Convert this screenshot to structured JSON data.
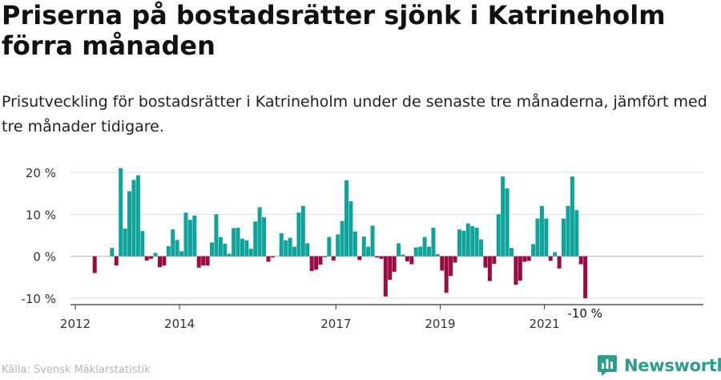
{
  "title": "Priserna på bostadsrätter sjönk i Katrineholm förra månaden",
  "subtitle": "Prisutveckling för bostadsrätter i Katrineholm under de senaste tre månaderna, jämfört med tre månader tidigare.",
  "source": "Källa: Svensk Mäklarstatistik",
  "brand": "Newsworthy",
  "colors": {
    "positive": "#0fa39b",
    "negative": "#9b0a43",
    "grid": "#dddddd",
    "axis": "#333333",
    "brand": "#2a9d8f"
  },
  "chart_data": {
    "type": "bar",
    "ylim": [
      -10,
      20
    ],
    "yticks": [
      -10,
      0,
      10,
      20
    ],
    "ytick_labels": [
      "-10 %",
      "0 %",
      "10 %",
      "20 %"
    ],
    "x_start": 2012.0,
    "x_step": 0.0833,
    "xticks": [
      2012,
      2014,
      2017,
      2019,
      2021
    ],
    "xtick_labels": [
      "2012",
      "2014",
      "2017",
      "2019",
      "2021"
    ],
    "last_value_label": "-10 %",
    "values": [
      0,
      0,
      0,
      0,
      -4,
      0,
      0,
      0,
      2,
      -2.2,
      21,
      6.6,
      15.5,
      18.2,
      19.3,
      6,
      -1,
      -0.6,
      0.8,
      -2.6,
      -2.2,
      2.4,
      6.4,
      3.9,
      1.2,
      10.4,
      8.7,
      9.7,
      -2.7,
      -2.2,
      -2.2,
      3.3,
      10,
      4.6,
      3,
      0.6,
      6.7,
      6.8,
      4.2,
      3.8,
      1.8,
      8.3,
      11.7,
      9.3,
      -1.3,
      -0.3,
      0,
      5.5,
      3.8,
      4.4,
      2.3,
      10.4,
      12,
      3.1,
      -3.5,
      -3.2,
      -2,
      -0.2,
      4.6,
      -1,
      5.2,
      8.4,
      18.1,
      13.1,
      5.9,
      -0.9,
      4.7,
      2.3,
      7.3,
      -0.3,
      -0.6,
      -9.6,
      -5.6,
      -3.7,
      3.1,
      0.4,
      -1.2,
      -1.9,
      2.1,
      2.3,
      4.6,
      2.3,
      6.8,
      0.5,
      -3.4,
      -8.7,
      -4.7,
      -1.5,
      6.4,
      6.1,
      7.8,
      7.2,
      6.8,
      4,
      -2.7,
      -5.9,
      -1.8,
      10,
      19,
      16.2,
      2,
      -6.8,
      -5.8,
      -1.3,
      -1.1,
      2.9,
      9,
      12,
      9,
      -1.1,
      1,
      -2.9,
      9,
      12,
      19,
      11,
      -1.9,
      -10
    ]
  }
}
